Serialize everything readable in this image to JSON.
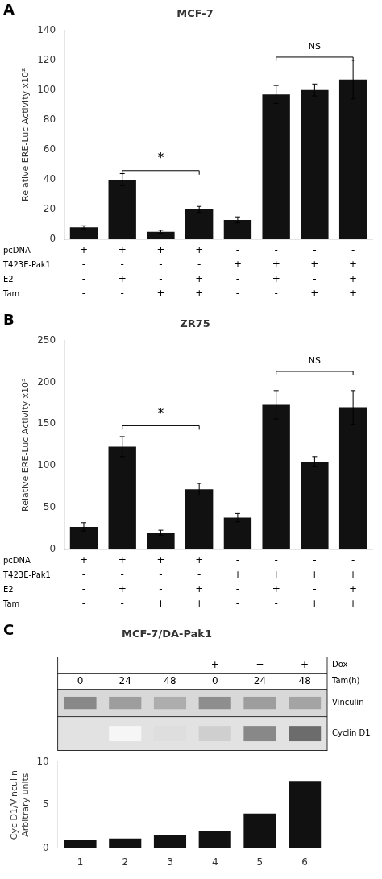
{
  "chart_data": [
    {
      "type": "bar",
      "panel": "A",
      "title": "MCF-7",
      "ylabel": "Relative ERE-Luc Activity x10²",
      "categories": [
        null,
        null,
        null,
        null,
        null,
        null,
        null,
        null
      ],
      "values": [
        8,
        40,
        5,
        20,
        13,
        97,
        100,
        107
      ],
      "errors": [
        1,
        4,
        1,
        2,
        2,
        6,
        4,
        13
      ],
      "color": "#111111",
      "ylim": [
        0,
        140
      ],
      "yticks": [
        0,
        20,
        40,
        60,
        80,
        100,
        120,
        140
      ],
      "grid": false,
      "conditions": [
        {
          "name": "pcDNA",
          "values": [
            "+",
            "+",
            "+",
            "+",
            "-",
            "-",
            "-",
            "-"
          ]
        },
        {
          "name": "T423E-Pak1",
          "values": [
            "-",
            "-",
            "-",
            "-",
            "+",
            "+",
            "+",
            "+"
          ]
        },
        {
          "name": "E2",
          "values": [
            "-",
            "+",
            "-",
            "+",
            "-",
            "+",
            "-",
            "+"
          ]
        },
        {
          "name": "Tam",
          "values": [
            "-",
            "-",
            "+",
            "+",
            "-",
            "-",
            "+",
            "+"
          ]
        }
      ],
      "annotations": [
        {
          "text": "*",
          "from": 1,
          "to": 3,
          "y": 50,
          "bracket_y": 46
        },
        {
          "text": "NS",
          "from": 5,
          "to": 7,
          "y": 126,
          "bracket_y": 122
        }
      ]
    },
    {
      "type": "bar",
      "panel": "B",
      "title": "ZR75",
      "ylabel": "Relative ERE-Luc Activity x10³",
      "categories": [
        null,
        null,
        null,
        null,
        null,
        null,
        null,
        null
      ],
      "values": [
        27,
        123,
        20,
        72,
        38,
        173,
        105,
        170
      ],
      "errors": [
        5,
        12,
        3,
        7,
        5,
        17,
        6,
        20
      ],
      "color": "#111111",
      "ylim": [
        0,
        250
      ],
      "yticks": [
        0,
        50,
        100,
        150,
        200,
        250
      ],
      "grid": false,
      "conditions": [
        {
          "name": "pcDNA",
          "values": [
            "+",
            "+",
            "+",
            "+",
            "-",
            "-",
            "-",
            "-"
          ]
        },
        {
          "name": "T423E-Pak1",
          "values": [
            "-",
            "-",
            "-",
            "-",
            "+",
            "+",
            "+",
            "+"
          ]
        },
        {
          "name": "E2",
          "values": [
            "-",
            "+",
            "-",
            "+",
            "-",
            "+",
            "-",
            "+"
          ]
        },
        {
          "name": "Tam",
          "values": [
            "-",
            "-",
            "+",
            "+",
            "-",
            "-",
            "+",
            "+"
          ]
        }
      ],
      "annotations": [
        {
          "text": "*",
          "from": 1,
          "to": 3,
          "y": 155,
          "bracket_y": 148
        },
        {
          "text": "NS",
          "from": 5,
          "to": 7,
          "y": 220,
          "bracket_y": 213
        }
      ]
    },
    {
      "type": "bar",
      "panel": "C",
      "title": "MCF-7/DA-Pak1",
      "ylabel": "Cyc D1/Vinculin\nArbitrary units",
      "categories": [
        "1",
        "2",
        "3",
        "4",
        "5",
        "6"
      ],
      "values": [
        1.0,
        1.1,
        1.5,
        2.0,
        4.0,
        7.8
      ],
      "color": "#111111",
      "ylim": [
        0,
        10
      ],
      "yticks": [
        0,
        5,
        10
      ],
      "grid": false,
      "blot": {
        "rows": [
          {
            "name": "Dox",
            "values": [
              "-",
              "-",
              "-",
              "+",
              "+",
              "+"
            ]
          },
          {
            "name": "Tam(h)",
            "values": [
              "0",
              "24",
              "48",
              "0",
              "24",
              "48"
            ]
          }
        ],
        "bands": [
          {
            "name": "Vinculin",
            "intensities": [
              0.55,
              0.45,
              0.38,
              0.52,
              0.45,
              0.42
            ]
          },
          {
            "name": "Cyclin D1",
            "intensities": [
              0.0,
              0.04,
              0.15,
              0.22,
              0.55,
              0.68
            ]
          }
        ]
      }
    }
  ]
}
